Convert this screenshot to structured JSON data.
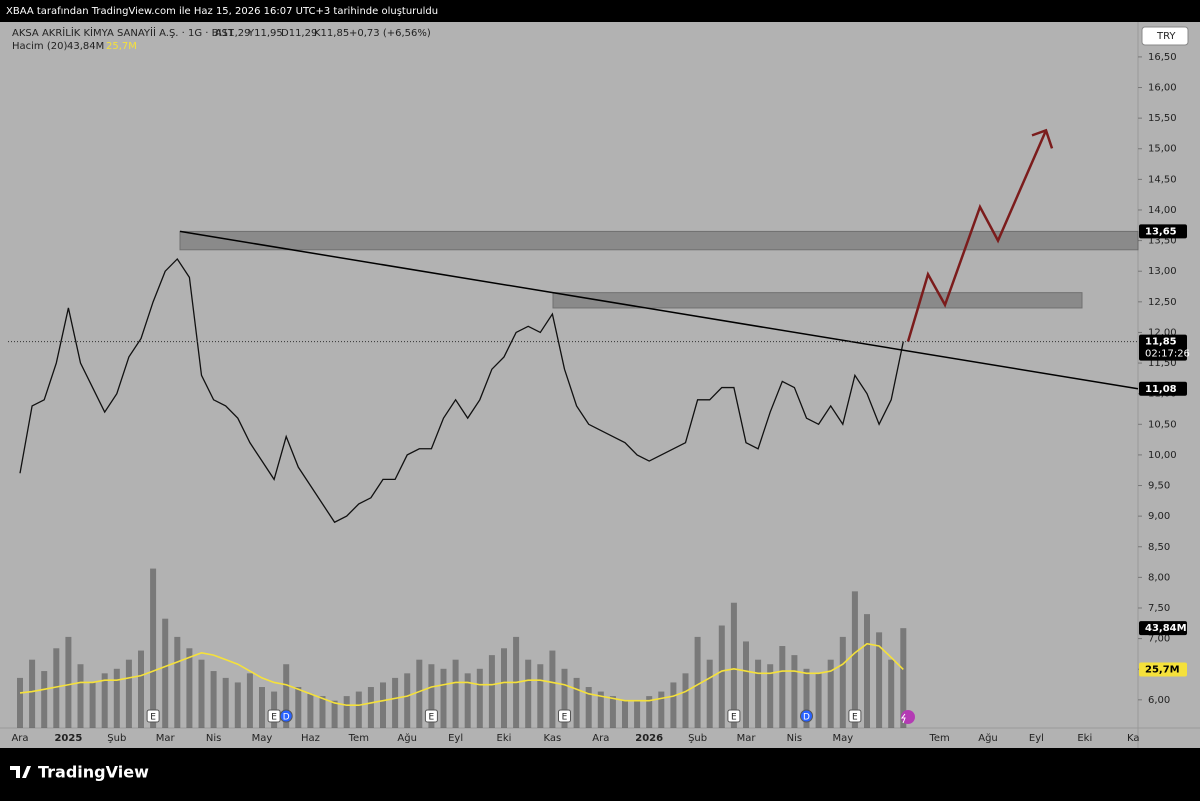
{
  "header": {
    "title": "XBAA tarafından TradingView.com ile Haz 15, 2026 16:07 UTC+3 tarihinde oluşturuldu"
  },
  "footer": {
    "brand": "TradingView"
  },
  "chart_data": {
    "type": "line",
    "symbol": "AKSA AKRİLİK KİMYA SANAYİİ A.Ş. · 1G · BIST",
    "ohlc": [
      "A11,29",
      "Y11,95",
      "D11,29",
      "K11,85"
    ],
    "change": "+0,73 (+6,56%)",
    "volume_title": "Hacim (20)",
    "currency": "TRY",
    "color": "#111111",
    "categories": [
      "Ara",
      null,
      null,
      null,
      "2025",
      null,
      null,
      null,
      "Şub",
      null,
      null,
      null,
      "Mar",
      null,
      null,
      null,
      "Nis",
      null,
      null,
      null,
      "May",
      null,
      null,
      null,
      "Haz",
      null,
      null,
      null,
      "Tem",
      null,
      null,
      null,
      "Ağu",
      null,
      null,
      null,
      "Eyl",
      null,
      null,
      null,
      "Eki",
      null,
      null,
      null,
      "Kas",
      null,
      null,
      null,
      "Ara",
      null,
      null,
      null,
      "2026",
      null,
      null,
      null,
      "Şub",
      null,
      null,
      null,
      "Mar",
      null,
      null,
      null,
      "Nis",
      null,
      null,
      null,
      "May",
      null,
      null,
      null,
      null,
      null,
      null,
      null,
      "Tem",
      null,
      null,
      null,
      "Ağu",
      null,
      null,
      null,
      "Eyl",
      null,
      null,
      null,
      "Eki",
      null,
      null,
      null,
      "Ka"
    ],
    "values": [
      9.7,
      10.8,
      10.9,
      11.5,
      12.4,
      11.5,
      11.1,
      10.7,
      11.0,
      11.6,
      11.9,
      12.5,
      13.0,
      13.2,
      12.9,
      11.3,
      10.9,
      10.8,
      10.6,
      10.2,
      9.9,
      9.6,
      10.3,
      9.8,
      9.5,
      9.2,
      8.9,
      9.0,
      9.2,
      9.3,
      9.6,
      9.6,
      10.0,
      10.1,
      10.1,
      10.6,
      10.9,
      10.6,
      10.9,
      11.4,
      11.6,
      12.0,
      12.1,
      12.0,
      12.3,
      11.4,
      10.8,
      10.5,
      10.4,
      10.3,
      10.2,
      10.0,
      9.9,
      10.0,
      10.1,
      10.2,
      10.9,
      10.9,
      11.1,
      11.1,
      10.2,
      10.1,
      10.7,
      11.2,
      11.1,
      10.6,
      10.5,
      10.8,
      10.5,
      11.3,
      11.0,
      10.5,
      10.9,
      11.85,
      null,
      null,
      null,
      null,
      null,
      null,
      null,
      null,
      null,
      null,
      null,
      null,
      null,
      null,
      null,
      null,
      null,
      null,
      null
    ],
    "volume": {
      "name": "Hacim",
      "color": "#4a4a4a",
      "values": [
        22,
        30,
        25,
        35,
        40,
        28,
        20,
        24,
        26,
        30,
        34,
        70,
        48,
        40,
        35,
        30,
        25,
        22,
        20,
        24,
        18,
        16,
        28,
        18,
        15,
        14,
        12,
        14,
        16,
        18,
        20,
        22,
        24,
        30,
        28,
        26,
        30,
        24,
        26,
        32,
        35,
        40,
        30,
        28,
        34,
        26,
        22,
        18,
        16,
        14,
        12,
        12,
        14,
        16,
        20,
        24,
        40,
        30,
        45,
        55,
        38,
        30,
        28,
        36,
        32,
        26,
        24,
        30,
        40,
        60,
        50,
        42,
        30,
        43.84,
        null,
        null,
        null,
        null,
        null,
        null,
        null,
        null,
        null,
        null,
        null,
        null,
        null,
        null,
        null,
        null,
        null,
        null,
        null
      ]
    },
    "volume_ma": {
      "name": "MA 20",
      "color": "#f5e13b",
      "values": [
        15.4,
        16,
        17,
        18,
        19,
        20,
        20,
        21,
        21,
        22,
        23,
        25,
        27,
        29,
        31,
        33,
        32,
        30,
        28,
        25,
        22,
        20,
        19,
        17,
        15,
        13,
        11,
        10,
        10,
        11,
        12,
        13,
        14,
        16,
        18,
        19,
        20,
        20,
        19,
        19,
        20,
        20,
        21,
        21,
        20,
        19,
        17,
        15,
        14,
        13,
        12,
        12,
        12,
        13,
        14,
        16,
        19,
        22,
        25,
        26,
        25,
        24,
        24,
        25,
        25,
        24,
        24,
        25,
        28,
        33,
        37,
        36,
        31,
        25.7,
        null,
        null,
        null,
        null,
        null,
        null,
        null,
        null,
        null,
        null,
        null,
        null,
        null,
        null,
        null,
        null,
        null,
        null,
        null
      ]
    },
    "events": [
      null,
      null,
      null,
      null,
      null,
      null,
      null,
      null,
      null,
      null,
      null,
      "E",
      null,
      null,
      null,
      null,
      null,
      null,
      null,
      null,
      null,
      "E",
      "D",
      null,
      null,
      null,
      null,
      null,
      null,
      null,
      null,
      null,
      null,
      null,
      "E",
      null,
      null,
      null,
      null,
      null,
      null,
      null,
      null,
      null,
      null,
      "E",
      null,
      null,
      null,
      null,
      null,
      null,
      null,
      null,
      null,
      null,
      null,
      null,
      null,
      "E",
      null,
      null,
      null,
      null,
      null,
      "D",
      null,
      null,
      null,
      "E",
      null,
      null,
      null,
      null,
      null,
      null,
      null,
      null,
      null,
      null,
      null,
      null,
      null,
      null,
      null,
      null,
      null,
      null,
      null,
      null,
      null,
      null,
      null
    ],
    "ylim": [
      5.54,
      17.07
    ],
    "vlim": [
      0,
      310
    ],
    "yticks": [
      {
        "value": 6,
        "label": "6,00"
      },
      {
        "value": 6.5,
        "label": "6,50"
      },
      {
        "value": 7,
        "label": "7,00"
      },
      {
        "value": 7.5,
        "label": "7,50"
      },
      {
        "value": 8,
        "label": "8,00"
      },
      {
        "value": 8.5,
        "label": "8,50"
      },
      {
        "value": 9,
        "label": "9,00"
      },
      {
        "value": 9.5,
        "label": "9,50"
      },
      {
        "value": 10,
        "label": "10,00"
      },
      {
        "value": 10.5,
        "label": "10,50"
      },
      {
        "value": 11,
        "label": "11,00"
      },
      {
        "value": 11.5,
        "label": "11,50"
      },
      {
        "value": 12,
        "label": "12,00"
      },
      {
        "value": 12.5,
        "label": "12,50"
      },
      {
        "value": 13,
        "label": "13,00"
      },
      {
        "value": 13.5,
        "label": "13,50"
      },
      {
        "value": 14,
        "label": "14,00"
      },
      {
        "value": 14.5,
        "label": "14,50"
      },
      {
        "value": 15,
        "label": "15,00"
      },
      {
        "value": 15.5,
        "label": "15,50"
      },
      {
        "value": 16,
        "label": "16,00"
      },
      {
        "value": 16.5,
        "label": "16,50"
      }
    ],
    "last_price": {
      "value": 11.85,
      "label": "11,85"
    },
    "countdown": "02:17:26",
    "volume_labels": [
      {
        "value": 43.84,
        "label": "43,84M"
      },
      {
        "value": 25.7,
        "label": "25,7M"
      }
    ],
    "trendline": {
      "start": {
        "value": 13.65,
        "label": "13,65"
      },
      "end": {
        "value": 11.08,
        "label": "11,08"
      }
    },
    "zones": [
      {
        "low": 13.35,
        "high": 13.65
      },
      {
        "low": 12.4,
        "high": 12.65
      }
    ],
    "projection": [
      11.85,
      12.95,
      12.45,
      14.05,
      13.5,
      15.3
    ]
  }
}
